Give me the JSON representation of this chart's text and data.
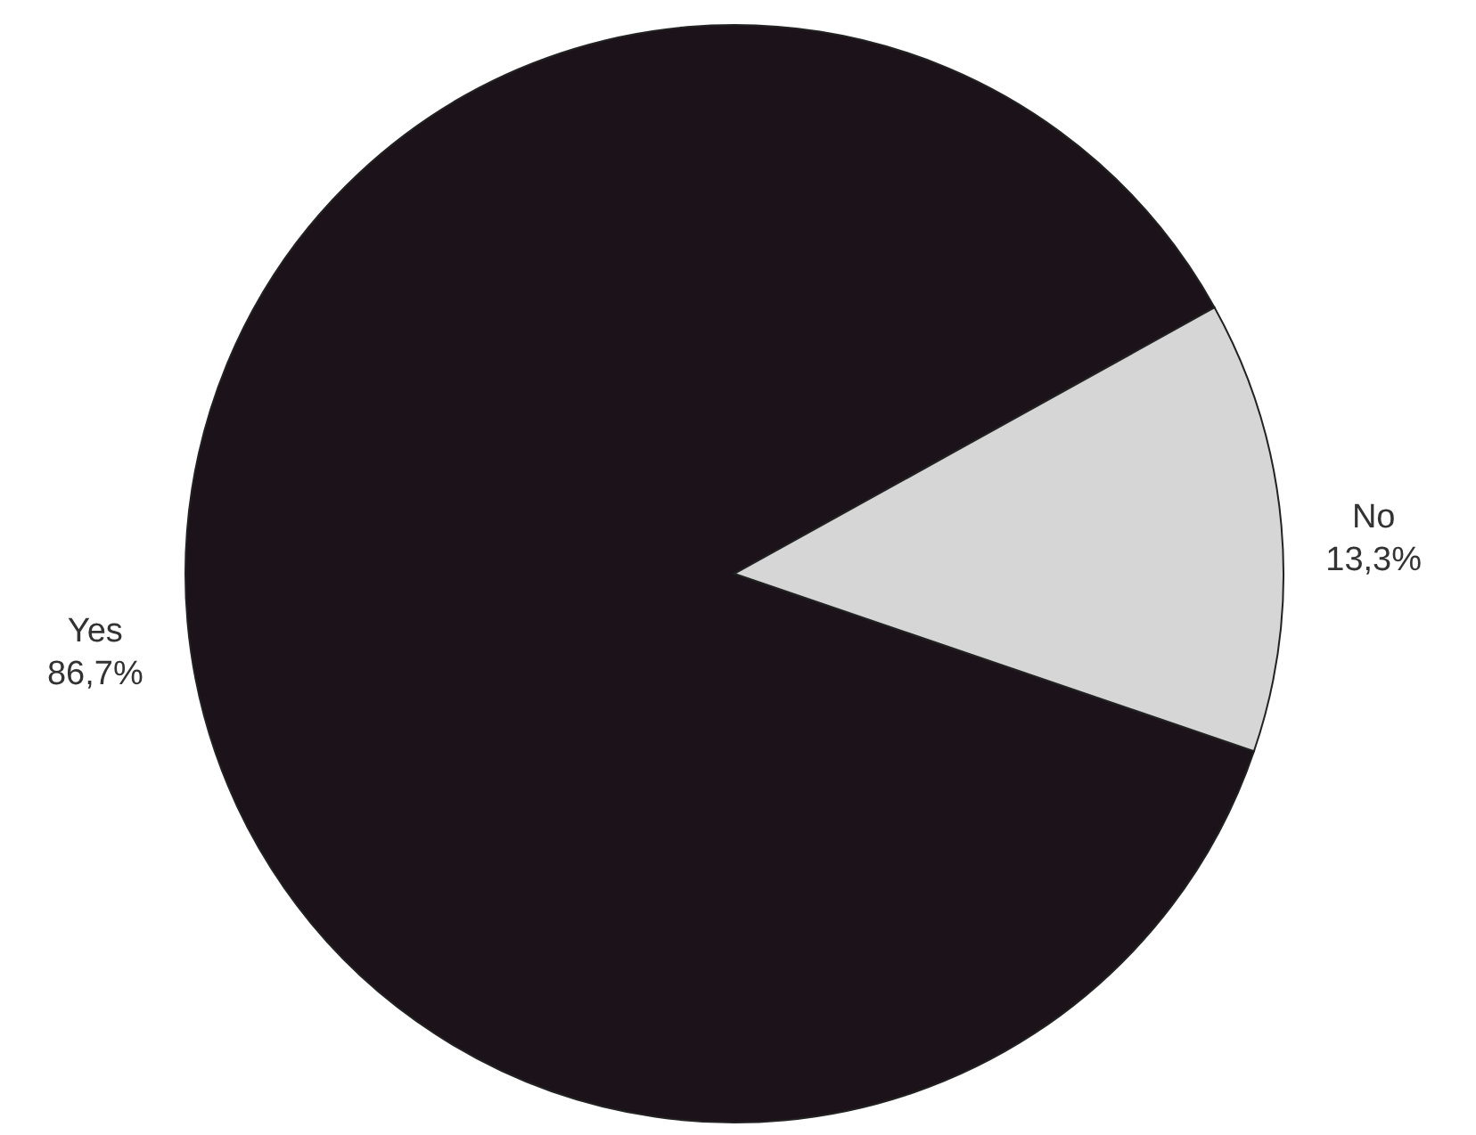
{
  "chart_data": {
    "type": "pie",
    "categories": [
      "Yes",
      "No"
    ],
    "values": [
      86.7,
      13.3
    ],
    "colors": [
      "#1c1219",
      "#d6d6d6"
    ],
    "value_labels": [
      "86,7%",
      "13,3%"
    ]
  }
}
